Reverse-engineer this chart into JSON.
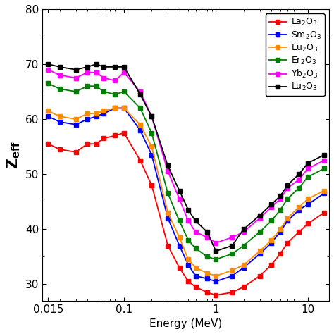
{
  "title": "",
  "xlabel": "Energy (MeV)",
  "ylabel_bold": "Z",
  "ylabel_sub": "eff",
  "ylim": [
    27,
    80
  ],
  "xlim": [
    0.013,
    17
  ],
  "series": {
    "La2O3": {
      "color": "#ff0000",
      "label": "La$_2$O$_3$",
      "x": [
        0.015,
        0.02,
        0.03,
        0.04,
        0.05,
        0.06,
        0.08,
        0.1,
        0.15,
        0.2,
        0.3,
        0.4,
        0.5,
        0.6,
        0.8,
        1.0,
        1.5,
        2.0,
        3.0,
        4.0,
        5.0,
        6.0,
        8.0,
        10.0,
        15.0
      ],
      "y": [
        55.5,
        54.5,
        54.0,
        55.5,
        55.5,
        56.5,
        57.0,
        57.5,
        52.5,
        48.0,
        37.0,
        33.0,
        30.5,
        29.5,
        28.5,
        28.0,
        28.5,
        29.5,
        31.5,
        33.5,
        35.5,
        37.5,
        39.5,
        41.0,
        43.0
      ]
    },
    "Sm2O3": {
      "color": "#0000ff",
      "label": "Sm$_2$O$_3$",
      "x": [
        0.015,
        0.02,
        0.03,
        0.04,
        0.05,
        0.06,
        0.08,
        0.1,
        0.15,
        0.2,
        0.3,
        0.4,
        0.5,
        0.6,
        0.8,
        1.0,
        1.5,
        2.0,
        3.0,
        4.0,
        5.0,
        6.0,
        8.0,
        10.0,
        15.0
      ],
      "y": [
        60.5,
        59.5,
        59.0,
        60.0,
        60.5,
        61.0,
        62.0,
        62.0,
        58.0,
        53.5,
        42.0,
        37.0,
        33.5,
        31.5,
        31.0,
        30.5,
        31.5,
        33.0,
        35.5,
        37.5,
        39.5,
        41.5,
        43.5,
        44.5,
        46.5
      ]
    },
    "Eu2O3": {
      "color": "#ff8c00",
      "label": "Eu$_2$O$_3$",
      "x": [
        0.015,
        0.02,
        0.03,
        0.04,
        0.05,
        0.06,
        0.08,
        0.1,
        0.15,
        0.2,
        0.3,
        0.4,
        0.5,
        0.6,
        0.8,
        1.0,
        1.5,
        2.0,
        3.0,
        4.0,
        5.0,
        6.0,
        8.0,
        10.0,
        15.0
      ],
      "y": [
        61.5,
        60.5,
        60.0,
        61.0,
        61.0,
        61.5,
        62.0,
        62.0,
        59.0,
        55.0,
        43.0,
        38.5,
        34.5,
        33.0,
        32.0,
        31.5,
        32.5,
        33.5,
        36.0,
        38.0,
        40.0,
        42.0,
        44.0,
        45.5,
        47.0
      ]
    },
    "Er2O3": {
      "color": "#008000",
      "label": "Er$_2$O$_3$",
      "x": [
        0.015,
        0.02,
        0.03,
        0.04,
        0.05,
        0.06,
        0.08,
        0.1,
        0.15,
        0.2,
        0.3,
        0.4,
        0.5,
        0.6,
        0.8,
        1.0,
        1.5,
        2.0,
        3.0,
        4.0,
        5.0,
        6.0,
        8.0,
        10.0,
        15.0
      ],
      "y": [
        66.5,
        65.5,
        65.0,
        66.0,
        66.0,
        65.0,
        64.5,
        65.0,
        62.0,
        57.5,
        46.5,
        41.5,
        38.0,
        36.5,
        35.0,
        34.5,
        35.5,
        37.0,
        39.5,
        41.5,
        43.5,
        45.5,
        47.5,
        49.5,
        51.0
      ]
    },
    "Yb2O3": {
      "color": "#ff00ff",
      "label": "Yb$_2$O$_3$",
      "x": [
        0.015,
        0.02,
        0.03,
        0.04,
        0.05,
        0.06,
        0.08,
        0.1,
        0.15,
        0.2,
        0.3,
        0.4,
        0.5,
        0.6,
        0.8,
        1.0,
        1.5,
        2.0,
        3.0,
        4.0,
        5.0,
        6.0,
        8.0,
        10.0,
        15.0
      ],
      "y": [
        69.0,
        68.0,
        67.5,
        68.5,
        68.5,
        67.5,
        67.0,
        68.5,
        65.0,
        60.5,
        50.5,
        45.5,
        41.5,
        39.5,
        38.5,
        37.5,
        38.5,
        39.5,
        42.0,
        44.0,
        45.5,
        47.5,
        49.0,
        51.0,
        52.5
      ]
    },
    "Lu2O3": {
      "color": "#000000",
      "label": "Lu$_2$O$_3$",
      "x": [
        0.015,
        0.02,
        0.03,
        0.04,
        0.05,
        0.06,
        0.08,
        0.1,
        0.15,
        0.2,
        0.3,
        0.4,
        0.5,
        0.6,
        0.8,
        1.0,
        1.5,
        2.0,
        3.0,
        4.0,
        5.0,
        6.0,
        8.0,
        10.0,
        15.0
      ],
      "y": [
        70.0,
        69.5,
        69.0,
        69.5,
        70.0,
        69.5,
        69.5,
        69.5,
        64.5,
        60.5,
        51.5,
        47.0,
        43.5,
        41.5,
        39.5,
        36.0,
        37.0,
        40.0,
        42.5,
        44.5,
        46.0,
        48.0,
        50.0,
        52.0,
        53.5
      ]
    }
  },
  "yticks": [
    30,
    40,
    50,
    60,
    70,
    80
  ],
  "xticks": [
    0.015,
    0.1,
    1,
    10
  ],
  "xtick_labels": [
    "0.015",
    "0.1",
    "1",
    "10"
  ],
  "marker": "s",
  "markersize": 4,
  "linewidth": 1.3
}
